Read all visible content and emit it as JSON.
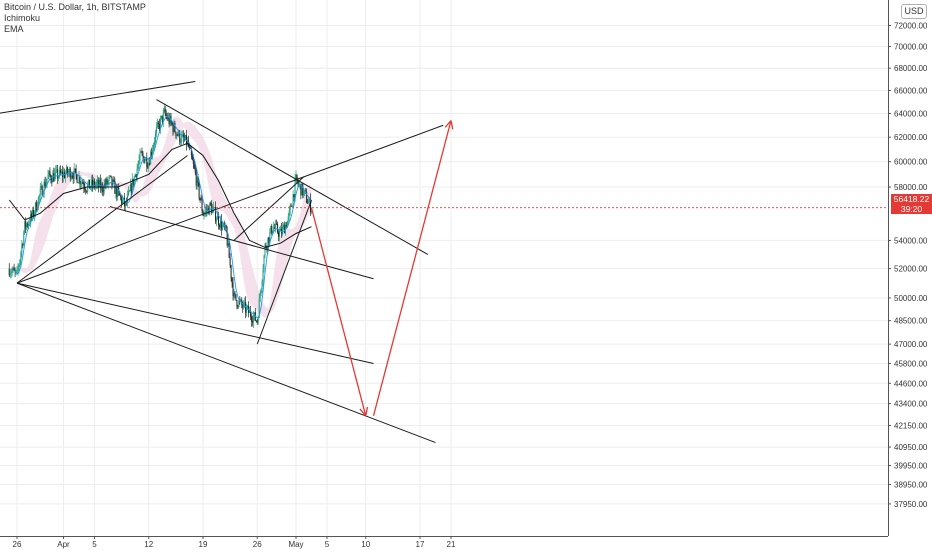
{
  "legend": {
    "symbol": "Bitcoin / U.S. Dollar, 1h, BITSTAMP",
    "indicator_1": "Ichimoku",
    "indicator_2": "EMA"
  },
  "currency_label": "USD",
  "last_price": {
    "value": "56418.22",
    "countdown": "39:20"
  },
  "colors": {
    "candle_up": "#1b9e77",
    "candle_down": "#222222",
    "ema": "#111111",
    "conversion": "#2196f3",
    "cloud": "#f3d9e6",
    "trendline": "#1a1a1a",
    "projection": "#e53935",
    "last_price": "#e53935",
    "grid": "#eeeeee"
  },
  "chart_data": {
    "type": "candlestick",
    "title": "Bitcoin / U.S. Dollar, 1h, BITSTAMP",
    "xlabel": "",
    "ylabel": "",
    "y_scale": "log",
    "x_range": [
      "2021-03-26",
      "2021-05-24"
    ],
    "y_range": [
      37000,
      73000
    ],
    "grid": true,
    "x_ticks": [
      {
        "label": "26",
        "date": "2021-03-26"
      },
      {
        "label": "Apr",
        "date": "2021-04-01"
      },
      {
        "label": "5",
        "date": "2021-04-05"
      },
      {
        "label": "12",
        "date": "2021-04-12"
      },
      {
        "label": "19",
        "date": "2021-04-19"
      },
      {
        "label": "26",
        "date": "2021-04-26"
      },
      {
        "label": "May",
        "date": "2021-05-01"
      },
      {
        "label": "5",
        "date": "2021-05-05"
      },
      {
        "label": "10",
        "date": "2021-05-10"
      },
      {
        "label": "17",
        "date": "2021-05-17"
      },
      {
        "label": "21",
        "date": "2021-05-21"
      }
    ],
    "y_ticks": [
      {
        "label": "72000.00",
        "value": 72000
      },
      {
        "label": "70000.00",
        "value": 70000
      },
      {
        "label": "68000.00",
        "value": 68000
      },
      {
        "label": "66000.00",
        "value": 66000
      },
      {
        "label": "64000.00",
        "value": 64000
      },
      {
        "label": "62000.00",
        "value": 62000
      },
      {
        "label": "60000.00",
        "value": 60000
      },
      {
        "label": "58000.00",
        "value": 58000
      },
      {
        "label": "54000.00",
        "value": 54000
      },
      {
        "label": "52000.00",
        "value": 52000
      },
      {
        "label": "50000.00",
        "value": 50000
      },
      {
        "label": "48500.00",
        "value": 48500
      },
      {
        "label": "47000.00",
        "value": 47000
      },
      {
        "label": "45800.00",
        "value": 45800
      },
      {
        "label": "44600.00",
        "value": 44600
      },
      {
        "label": "43400.00",
        "value": 43400
      },
      {
        "label": "42150.00",
        "value": 42150
      },
      {
        "label": "40950.00",
        "value": 40950
      },
      {
        "label": "39950.00",
        "value": 39950
      },
      {
        "label": "38950.00",
        "value": 38950
      },
      {
        "label": "37950.00",
        "value": 37950
      }
    ],
    "price_path": [
      [
        "2021-03-25",
        52000
      ],
      [
        "2021-03-26",
        51500
      ],
      [
        "2021-03-27",
        55000
      ],
      [
        "2021-03-28",
        55800
      ],
      [
        "2021-03-29",
        57500
      ],
      [
        "2021-03-30",
        58800
      ],
      [
        "2021-03-31",
        58900
      ],
      [
        "2021-04-01",
        59000
      ],
      [
        "2021-04-02",
        59200
      ],
      [
        "2021-04-03",
        58700
      ],
      [
        "2021-04-04",
        58000
      ],
      [
        "2021-04-05",
        58200
      ],
      [
        "2021-04-06",
        58000
      ],
      [
        "2021-04-07",
        58500
      ],
      [
        "2021-04-08",
        57500
      ],
      [
        "2021-04-09",
        56500
      ],
      [
        "2021-04-10",
        58500
      ],
      [
        "2021-04-11",
        60500
      ],
      [
        "2021-04-12",
        60000
      ],
      [
        "2021-04-13",
        62500
      ],
      [
        "2021-04-14",
        64000
      ],
      [
        "2021-04-15",
        63000
      ],
      [
        "2021-04-16",
        62000
      ],
      [
        "2021-04-17",
        61500
      ],
      [
        "2021-04-18",
        59000
      ],
      [
        "2021-04-19",
        56000
      ],
      [
        "2021-04-20",
        56500
      ],
      [
        "2021-04-21",
        55500
      ],
      [
        "2021-04-22",
        54500
      ],
      [
        "2021-04-23",
        50000
      ],
      [
        "2021-04-24",
        49500
      ],
      [
        "2021-04-25",
        49000
      ],
      [
        "2021-04-26",
        48500
      ],
      [
        "2021-04-27",
        53500
      ],
      [
        "2021-04-28",
        55000
      ],
      [
        "2021-04-29",
        54500
      ],
      [
        "2021-04-30",
        55500
      ],
      [
        "2021-05-01",
        58500
      ],
      [
        "2021-05-02",
        57500
      ],
      [
        "2021-05-03",
        56418
      ]
    ],
    "series": [
      {
        "name": "EMA",
        "values": [
          [
            "2021-03-25",
            57000
          ],
          [
            "2021-03-27",
            55500
          ],
          [
            "2021-03-29",
            56000
          ],
          [
            "2021-04-01",
            57500
          ],
          [
            "2021-04-04",
            58000
          ],
          [
            "2021-04-08",
            58000
          ],
          [
            "2021-04-12",
            59000
          ],
          [
            "2021-04-15",
            61000
          ],
          [
            "2021-04-17",
            61500
          ],
          [
            "2021-04-19",
            60500
          ],
          [
            "2021-04-21",
            58500
          ],
          [
            "2021-04-23",
            56000
          ],
          [
            "2021-04-25",
            54000
          ],
          [
            "2021-04-27",
            53500
          ],
          [
            "2021-04-29",
            53800
          ],
          [
            "2021-05-01",
            54500
          ],
          [
            "2021-05-03",
            55000
          ]
        ]
      }
    ],
    "drawings": {
      "trendlines": [
        {
          "from": [
            "2021-03-17",
            63300
          ],
          "to": [
            "2021-04-18",
            66800
          ]
        },
        {
          "from": [
            "2021-04-13",
            65200
          ],
          "to": [
            "2021-05-18",
            53000
          ]
        },
        {
          "from": [
            "2021-03-26",
            51000
          ],
          "to": [
            "2021-05-20",
            63000
          ]
        },
        {
          "from": [
            "2021-03-26",
            51000
          ],
          "to": [
            "2021-04-17",
            60500
          ]
        },
        {
          "from": [
            "2021-04-07",
            56500
          ],
          "to": [
            "2021-05-11",
            51300
          ]
        },
        {
          "from": [
            "2021-03-26",
            51000
          ],
          "to": [
            "2021-05-11",
            45800
          ]
        },
        {
          "from": [
            "2021-03-26",
            51000
          ],
          "to": [
            "2021-05-19",
            41200
          ]
        },
        {
          "from": [
            "2021-04-23",
            54000
          ],
          "to": [
            "2021-05-02",
            58800
          ]
        },
        {
          "from": [
            "2021-04-26",
            47000
          ],
          "to": [
            "2021-05-03",
            57000
          ]
        }
      ],
      "projection": [
        [
          "2021-05-03",
          56400
        ],
        [
          "2021-05-10",
          42700
        ],
        [
          "2021-05-11",
          42700
        ],
        [
          "2021-05-21",
          63400
        ]
      ]
    }
  }
}
